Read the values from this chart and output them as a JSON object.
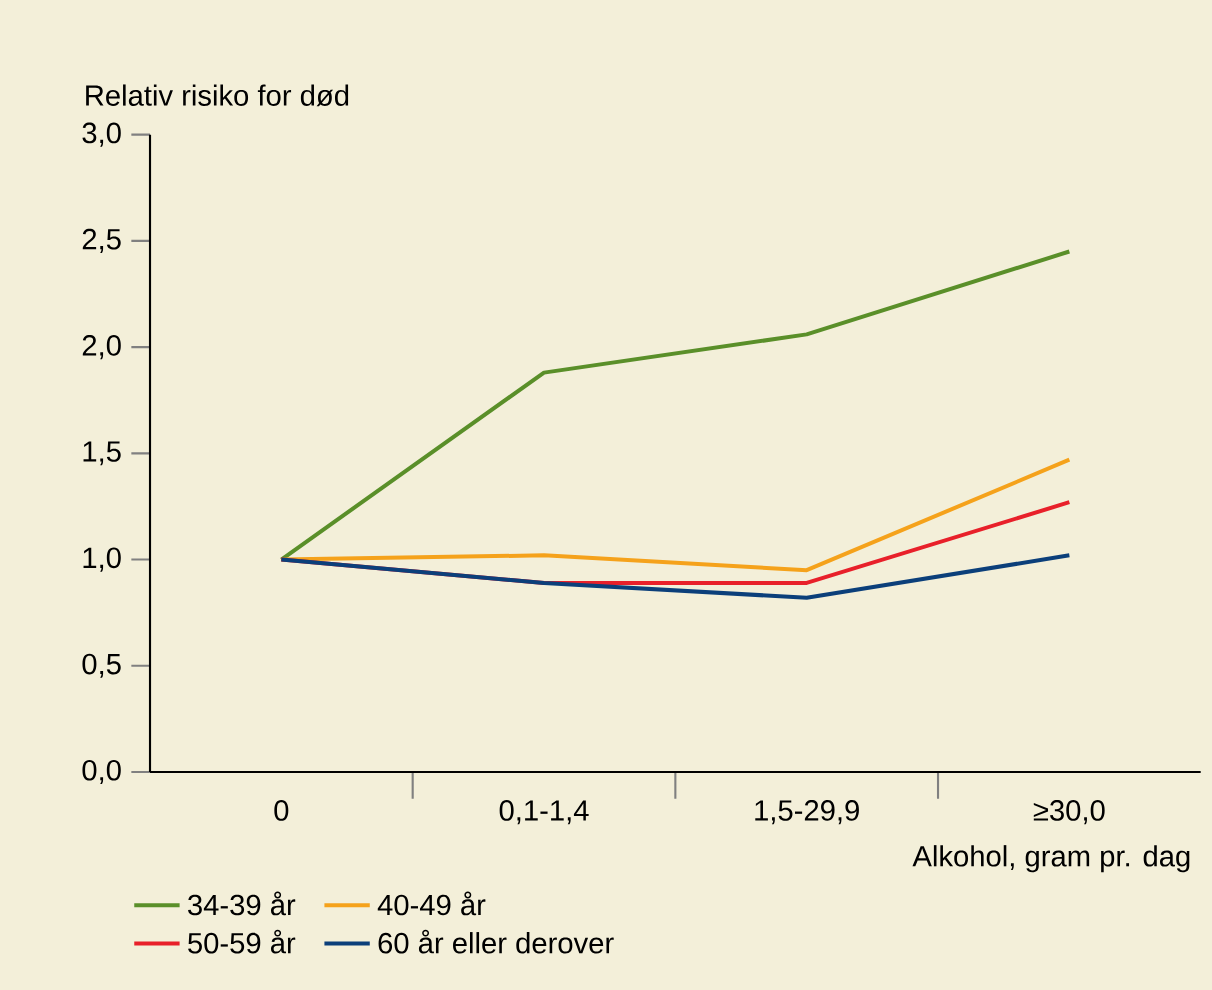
{
  "chart_data": {
    "type": "line",
    "ylabel": "Relativ risiko for død",
    "xlabel": "Alkohol, gram pr. dag",
    "categories": [
      "0",
      "0,1-1,4",
      "1,5-29,9",
      "≥30,0"
    ],
    "series": [
      {
        "name": "34-39 år",
        "color": "#5a8f29",
        "values": [
          1.0,
          1.88,
          2.06,
          2.45
        ]
      },
      {
        "name": "40-49 år",
        "color": "#f5a21b",
        "values": [
          1.0,
          1.02,
          0.95,
          1.47
        ]
      },
      {
        "name": "50-59 år",
        "color": "#e8202a",
        "values": [
          1.0,
          0.89,
          0.89,
          1.27
        ]
      },
      {
        "name": "60 år eller derover",
        "color": "#0b3f7a",
        "values": [
          1.0,
          0.89,
          0.82,
          1.02
        ]
      }
    ],
    "ylim": [
      0,
      3
    ],
    "yticks": [
      {
        "value": 0,
        "label": "0,0"
      },
      {
        "value": 0.5,
        "label": "0,5"
      },
      {
        "value": 1,
        "label": "1,0"
      },
      {
        "value": 1.5,
        "label": "1,5"
      },
      {
        "value": 2,
        "label": "2,0"
      },
      {
        "value": 2.5,
        "label": "2,5"
      },
      {
        "value": 3,
        "label": "3,0"
      }
    ],
    "grid": false,
    "legend": "bottom left",
    "marker": "none",
    "line_style": "solid"
  }
}
